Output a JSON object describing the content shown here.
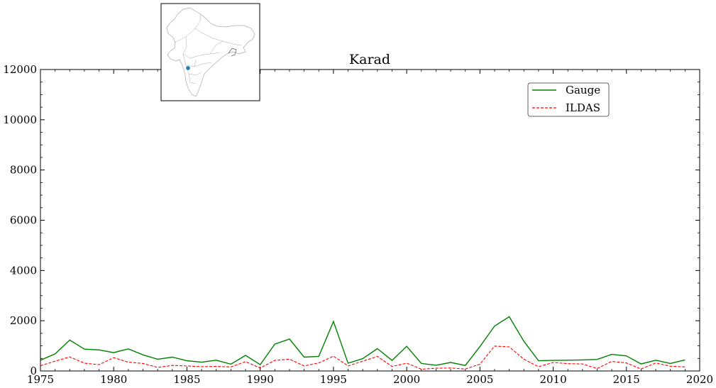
{
  "chart_data": {
    "type": "line",
    "title": "Karad",
    "xlabel": "",
    "ylabel": "",
    "xlim": [
      1975,
      2020
    ],
    "ylim": [
      0,
      12000
    ],
    "x_ticks": [
      1975,
      1980,
      1985,
      1990,
      1995,
      2000,
      2005,
      2010,
      2015,
      2020
    ],
    "y_ticks": [
      0,
      2000,
      4000,
      6000,
      8000,
      10000,
      12000
    ],
    "grid": false,
    "legend_position": "top-right",
    "series": [
      {
        "name": "Gauge",
        "color": "#008000",
        "style": "solid",
        "x": [
          1975,
          1976,
          1977,
          1978,
          1979,
          1980,
          1981,
          1982,
          1983,
          1984,
          1985,
          1986,
          1987,
          1988,
          1989,
          1990,
          1991,
          1992,
          1993,
          1994,
          1995,
          1996,
          1997,
          1998,
          1999,
          2000,
          2001,
          2002,
          2003,
          2004,
          2005,
          2006,
          2007,
          2008,
          2009,
          2010,
          2011,
          2012,
          2013,
          2014,
          2015,
          2016,
          2017,
          2018,
          2019
        ],
        "y": [
          430,
          680,
          1230,
          870,
          840,
          730,
          880,
          640,
          470,
          550,
          410,
          350,
          430,
          270,
          620,
          250,
          1070,
          1270,
          550,
          580,
          1970,
          310,
          490,
          890,
          420,
          980,
          300,
          230,
          340,
          220,
          970,
          1790,
          2160,
          1180,
          410,
          420,
          430,
          440,
          460,
          660,
          600,
          280,
          430,
          300,
          440
        ]
      },
      {
        "name": "ILDAS",
        "color": "#ff0000",
        "style": "dashed",
        "x": [
          1975,
          1976,
          1977,
          1978,
          1979,
          1980,
          1981,
          1982,
          1983,
          1984,
          1985,
          1986,
          1987,
          1988,
          1989,
          1990,
          1991,
          1992,
          1993,
          1994,
          1995,
          1996,
          1997,
          1998,
          1999,
          2000,
          2001,
          2002,
          2003,
          2004,
          2005,
          2006,
          2007,
          2008,
          2009,
          2010,
          2011,
          2012,
          2013,
          2014,
          2015,
          2016,
          2017,
          2018,
          2019
        ],
        "y": [
          210,
          390,
          560,
          310,
          250,
          530,
          350,
          300,
          140,
          220,
          200,
          170,
          180,
          160,
          370,
          120,
          420,
          470,
          200,
          320,
          590,
          200,
          390,
          580,
          180,
          310,
          70,
          110,
          120,
          80,
          270,
          990,
          960,
          470,
          170,
          340,
          290,
          280,
          100,
          380,
          320,
          80,
          320,
          190,
          160
        ]
      }
    ],
    "inset_map": {
      "region_label": "",
      "marker_color": "#1f77b4"
    }
  }
}
